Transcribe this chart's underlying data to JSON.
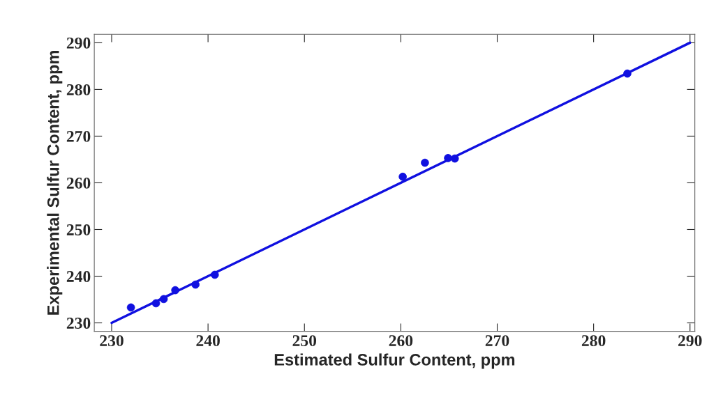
{
  "chart_data": {
    "type": "scatter",
    "xlabel": "Estimated Sulfur Content, ppm",
    "ylabel": "Experimental Sulfur Content, ppm",
    "series": [
      {
        "marker": "circle",
        "color": "#1010e0",
        "x": [
          232.0,
          234.6,
          235.4,
          236.6,
          238.7,
          240.7,
          260.2,
          262.5,
          264.9,
          265.6,
          283.5
        ],
        "values": [
          233.3,
          234.2,
          235.1,
          237.0,
          238.2,
          240.3,
          261.3,
          264.3,
          265.3,
          265.2,
          283.4
        ]
      },
      {
        "type": "line",
        "marker": "none",
        "color": "#1010e0",
        "x": [
          230,
          290
        ],
        "values": [
          230,
          290
        ]
      }
    ],
    "grid": false,
    "legend": false,
    "xlim": [
      228.2,
      290.5
    ],
    "ylim": [
      228.2,
      291.8
    ],
    "xticks": [
      230,
      240,
      250,
      260,
      270,
      280,
      290
    ],
    "yticks": [
      230,
      240,
      250,
      260,
      270,
      280,
      290
    ]
  }
}
